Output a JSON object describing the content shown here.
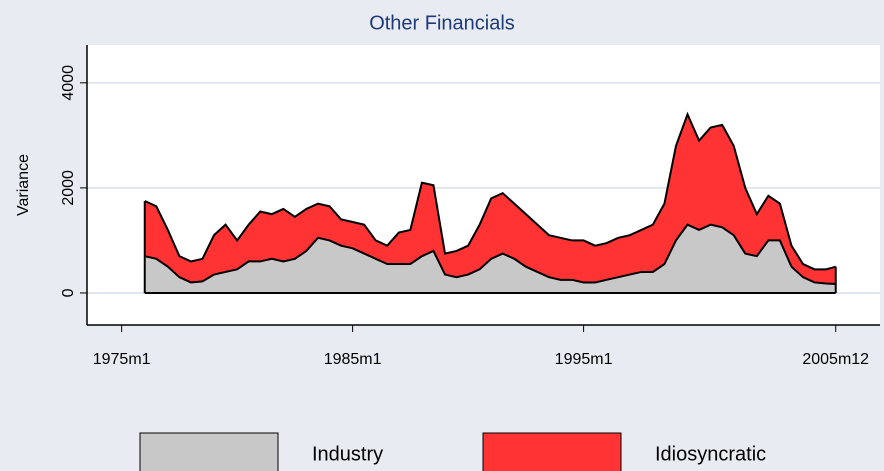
{
  "chart_data": {
    "type": "stacked_area",
    "title": "Other Financials",
    "y_label": "Variance",
    "x": [
      "1976m1",
      "1976m7",
      "1977m1",
      "1977m7",
      "1978m1",
      "1978m7",
      "1979m1",
      "1979m7",
      "1980m1",
      "1980m7",
      "1981m1",
      "1981m7",
      "1982m1",
      "1982m7",
      "1983m1",
      "1983m7",
      "1984m1",
      "1984m7",
      "1985m1",
      "1985m7",
      "1986m1",
      "1986m7",
      "1987m1",
      "1987m7",
      "1988m1",
      "1988m7",
      "1989m1",
      "1989m7",
      "1990m1",
      "1990m7",
      "1991m1",
      "1991m7",
      "1992m1",
      "1992m7",
      "1993m1",
      "1993m7",
      "1994m1",
      "1994m7",
      "1995m1",
      "1995m7",
      "1996m1",
      "1996m7",
      "1997m1",
      "1997m7",
      "1998m1",
      "1998m7",
      "1999m1",
      "1999m7",
      "2000m1",
      "2000m7",
      "2001m1",
      "2001m7",
      "2002m1",
      "2002m7",
      "2003m1",
      "2003m7",
      "2004m1",
      "2004m7",
      "2005m1",
      "2005m7",
      "2005m12"
    ],
    "series": [
      {
        "name": "Industry",
        "color": "#c8c8c8",
        "values": [
          700,
          650,
          500,
          300,
          200,
          220,
          350,
          400,
          450,
          600,
          600,
          650,
          600,
          650,
          800,
          1050,
          1000,
          900,
          850,
          750,
          650,
          550,
          550,
          550,
          700,
          800,
          350,
          300,
          350,
          450,
          650,
          750,
          650,
          500,
          400,
          300,
          250,
          250,
          200,
          200,
          250,
          300,
          350,
          400,
          400,
          550,
          1000,
          1300,
          1200,
          1300,
          1250,
          1100,
          750,
          700,
          1000,
          1000,
          500,
          300,
          200,
          180,
          170
        ]
      },
      {
        "name": "Idiosyncratic",
        "color": "#ff3333",
        "values": [
          1050,
          1000,
          700,
          400,
          400,
          430,
          750,
          900,
          550,
          700,
          950,
          850,
          1000,
          800,
          800,
          650,
          650,
          500,
          500,
          550,
          350,
          350,
          600,
          650,
          1400,
          1250,
          400,
          500,
          550,
          850,
          1150,
          1150,
          1050,
          1000,
          900,
          800,
          800,
          750,
          800,
          700,
          700,
          750,
          750,
          800,
          900,
          1150,
          1800,
          2100,
          1700,
          1850,
          1950,
          1700,
          1250,
          800,
          850,
          700,
          400,
          250,
          250,
          270,
          330
        ]
      }
    ],
    "xlim": [
      "1973m7",
      "2007m11"
    ],
    "xticks": [
      "1975m1",
      "1985m1",
      "1995m1",
      "2005m12"
    ],
    "ylim": [
      -610,
      4720
    ],
    "yticks": [
      0,
      2000,
      4000
    ],
    "grid": true,
    "legend": "bottom"
  }
}
